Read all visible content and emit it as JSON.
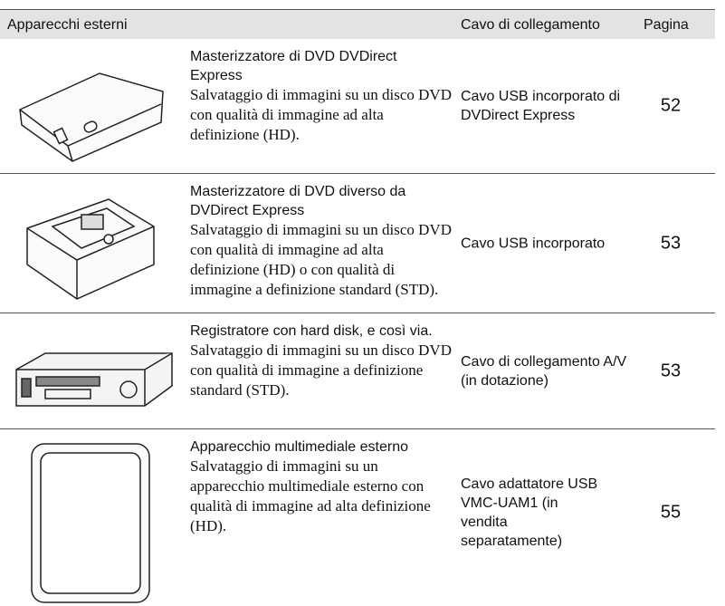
{
  "header": {
    "columns": [
      "Apparecchi esterni",
      "Cavo di collegamento",
      "Pagina"
    ]
  },
  "rows": [
    {
      "device": "Masterizzatore di DVD DVDirect Express",
      "description": "Salvataggio di immagini su un disco DVD con qualità di immagine ad alta definizione (HD).",
      "cable": "Cavo USB incorporato di DVDirect Express",
      "page": "52"
    },
    {
      "device": "Masterizzatore di DVD diverso da DVDirect Express",
      "description": "Salvataggio di immagini su un disco DVD con qualità di immagine ad alta definizione (HD) o con qualità di immagine a definizione standard (STD).",
      "cable": "Cavo USB incorporato",
      "page": "53"
    },
    {
      "device": "Registratore con hard disk, e così via.",
      "description": "Salvataggio di immagini su un disco DVD con qualità di immagine a definizione standard (STD).",
      "cable": "Cavo di collegamento A/V (in dotazione)",
      "page": "53"
    },
    {
      "device": "Apparecchio multimediale esterno",
      "description": "Salvataggio di immagini su un apparecchio multimediale esterno con qualità di immagine ad alta definizione (HD).",
      "cable": "Cavo adattatore USB VMC-UAM1 (in vendita separatamente)",
      "page": "55"
    }
  ]
}
